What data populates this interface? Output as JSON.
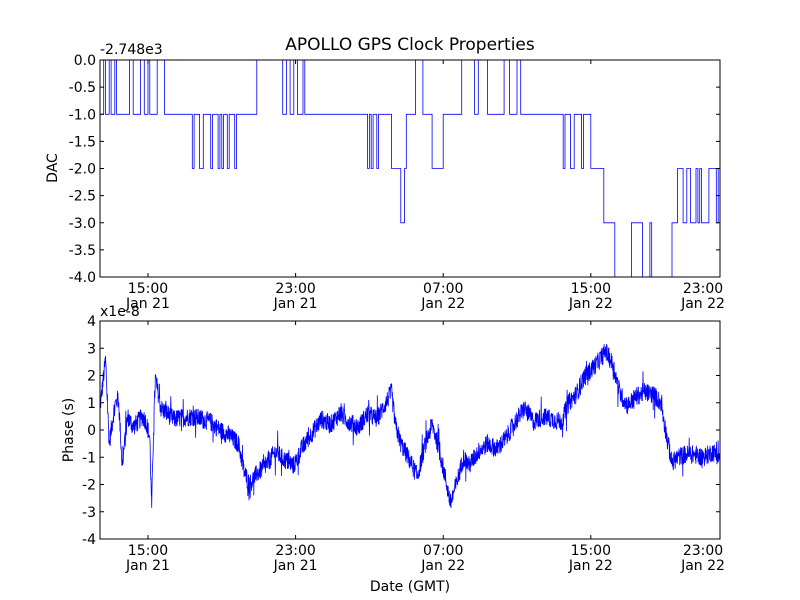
{
  "chart_data": [
    {
      "type": "line",
      "title": "APOLLO GPS Clock Properties",
      "ylabel": "DAC",
      "xlabel": "",
      "offset_label": "-2.748e3",
      "ylim": [
        -4.0,
        0.0
      ],
      "xlim_hours": [
        0,
        33.6
      ],
      "yticks": [
        0.0,
        -0.5,
        -1.0,
        -1.5,
        -2.0,
        -2.5,
        -3.0,
        -3.5,
        -4.0
      ],
      "ytick_labels": [
        "0.0",
        "-0.5",
        "-1.0",
        "-1.5",
        "-2.0",
        "-2.5",
        "-3.0",
        "-3.5",
        "-4.0"
      ],
      "xtick_hours": [
        2.6,
        10.6,
        18.6,
        26.6,
        34.6
      ],
      "xtick_time_labels": [
        "15:00",
        "23:00",
        "07:00",
        "15:00",
        "23:00"
      ],
      "xtick_date_labels": [
        "Jan 21",
        "Jan 21",
        "Jan 22",
        "Jan 22",
        "Jan 22"
      ],
      "line_color": "#0000ff",
      "series": [
        {
          "name": "DAC",
          "points": [
            [
              0.0,
              -1.0
            ],
            [
              0.2,
              -1.0
            ],
            [
              0.2,
              0.0
            ],
            [
              0.3,
              0.0
            ],
            [
              0.3,
              -1.0
            ],
            [
              0.5,
              -1.0
            ],
            [
              0.5,
              0.0
            ],
            [
              0.6,
              0.0
            ],
            [
              0.6,
              -1.0
            ],
            [
              0.8,
              -1.0
            ],
            [
              0.8,
              0.0
            ],
            [
              0.9,
              0.0
            ],
            [
              0.9,
              -1.0
            ],
            [
              1.6,
              -1.0
            ],
            [
              1.6,
              0.0
            ],
            [
              1.8,
              0.0
            ],
            [
              1.8,
              -1.0
            ],
            [
              2.2,
              -1.0
            ],
            [
              2.2,
              0.0
            ],
            [
              2.4,
              0.0
            ],
            [
              2.4,
              -1.0
            ],
            [
              2.6,
              -1.0
            ],
            [
              2.6,
              0.0
            ],
            [
              2.7,
              0.0
            ],
            [
              2.7,
              -1.0
            ],
            [
              3.1,
              -1.0
            ],
            [
              3.1,
              0.0
            ],
            [
              3.5,
              0.0
            ],
            [
              3.5,
              -1.0
            ],
            [
              5.0,
              -1.0
            ],
            [
              5.0,
              -2.0
            ],
            [
              5.1,
              -2.0
            ],
            [
              5.1,
              -1.0
            ],
            [
              5.4,
              -1.0
            ],
            [
              5.4,
              -2.0
            ],
            [
              5.6,
              -2.0
            ],
            [
              5.6,
              -1.0
            ],
            [
              6.0,
              -1.0
            ],
            [
              6.0,
              -2.0
            ],
            [
              6.1,
              -2.0
            ],
            [
              6.1,
              -1.0
            ],
            [
              6.4,
              -1.0
            ],
            [
              6.4,
              -2.0
            ],
            [
              6.5,
              -2.0
            ],
            [
              6.5,
              -1.0
            ],
            [
              6.6,
              -1.0
            ],
            [
              6.6,
              -2.0
            ],
            [
              6.7,
              -2.0
            ],
            [
              6.7,
              -1.0
            ],
            [
              6.9,
              -1.0
            ],
            [
              6.9,
              -2.0
            ],
            [
              7.0,
              -2.0
            ],
            [
              7.0,
              -1.0
            ],
            [
              7.3,
              -1.0
            ],
            [
              7.3,
              -2.0
            ],
            [
              7.4,
              -2.0
            ],
            [
              7.4,
              -1.0
            ],
            [
              8.5,
              -1.0
            ],
            [
              8.5,
              0.0
            ],
            [
              9.9,
              0.0
            ],
            [
              9.9,
              -1.0
            ],
            [
              10.1,
              -1.0
            ],
            [
              10.1,
              0.0
            ],
            [
              10.3,
              0.0
            ],
            [
              10.3,
              -1.0
            ],
            [
              10.5,
              -1.0
            ],
            [
              10.5,
              0.0
            ],
            [
              10.7,
              0.0
            ],
            [
              10.7,
              -1.0
            ],
            [
              11.0,
              -1.0
            ],
            [
              11.0,
              0.0
            ],
            [
              11.1,
              0.0
            ],
            [
              11.1,
              -1.0
            ],
            [
              14.5,
              -1.0
            ],
            [
              14.5,
              -2.0
            ],
            [
              14.6,
              -2.0
            ],
            [
              14.6,
              -1.0
            ],
            [
              14.7,
              -1.0
            ],
            [
              14.7,
              -2.0
            ],
            [
              14.8,
              -2.0
            ],
            [
              14.8,
              -1.0
            ],
            [
              15.0,
              -1.0
            ],
            [
              15.0,
              -2.0
            ],
            [
              15.1,
              -2.0
            ],
            [
              15.1,
              -1.0
            ],
            [
              15.8,
              -1.0
            ],
            [
              15.8,
              -2.0
            ],
            [
              16.3,
              -2.0
            ],
            [
              16.3,
              -3.0
            ],
            [
              16.5,
              -3.0
            ],
            [
              16.5,
              -2.0
            ],
            [
              16.6,
              -2.0
            ],
            [
              16.6,
              -1.0
            ],
            [
              17.1,
              -1.0
            ],
            [
              17.1,
              0.0
            ],
            [
              17.5,
              0.0
            ],
            [
              17.5,
              -1.0
            ],
            [
              18.0,
              -1.0
            ],
            [
              18.0,
              -2.0
            ],
            [
              18.6,
              -2.0
            ],
            [
              18.6,
              -1.0
            ],
            [
              19.6,
              -1.0
            ],
            [
              19.6,
              0.0
            ],
            [
              20.3,
              0.0
            ],
            [
              20.3,
              -1.0
            ],
            [
              20.5,
              -1.0
            ],
            [
              20.5,
              0.0
            ],
            [
              21.0,
              0.0
            ],
            [
              21.0,
              -1.0
            ],
            [
              21.9,
              -1.0
            ],
            [
              21.9,
              0.0
            ],
            [
              22.2,
              0.0
            ],
            [
              22.2,
              -1.0
            ],
            [
              22.6,
              -1.0
            ],
            [
              22.6,
              0.0
            ],
            [
              22.8,
              0.0
            ],
            [
              22.8,
              -1.0
            ],
            [
              25.1,
              -1.0
            ],
            [
              25.1,
              -2.0
            ],
            [
              25.2,
              -2.0
            ],
            [
              25.2,
              -1.0
            ],
            [
              25.5,
              -1.0
            ],
            [
              25.5,
              -2.0
            ],
            [
              25.7,
              -2.0
            ],
            [
              25.7,
              -1.0
            ],
            [
              26.1,
              -1.0
            ],
            [
              26.1,
              -2.0
            ],
            [
              26.2,
              -2.0
            ],
            [
              26.2,
              -1.0
            ],
            [
              26.6,
              -1.0
            ],
            [
              26.6,
              -2.0
            ],
            [
              27.3,
              -2.0
            ],
            [
              27.3,
              -3.0
            ],
            [
              27.9,
              -3.0
            ],
            [
              27.9,
              -4.0
            ],
            [
              28.8,
              -4.0
            ],
            [
              28.8,
              -3.0
            ],
            [
              29.4,
              -3.0
            ],
            [
              29.4,
              -4.0
            ],
            [
              29.8,
              -4.0
            ],
            [
              29.8,
              -3.0
            ],
            [
              29.9,
              -3.0
            ],
            [
              29.9,
              -4.0
            ],
            [
              31.0,
              -4.0
            ],
            [
              31.0,
              -3.0
            ],
            [
              31.3,
              -3.0
            ],
            [
              31.3,
              -2.0
            ],
            [
              31.6,
              -2.0
            ],
            [
              31.6,
              -3.0
            ],
            [
              31.8,
              -3.0
            ],
            [
              31.8,
              -2.0
            ],
            [
              32.0,
              -2.0
            ],
            [
              32.0,
              -3.0
            ],
            [
              32.3,
              -3.0
            ],
            [
              32.3,
              -2.0
            ],
            [
              32.4,
              -2.0
            ],
            [
              32.4,
              -3.0
            ],
            [
              32.5,
              -3.0
            ],
            [
              32.5,
              -2.0
            ],
            [
              32.6,
              -2.0
            ],
            [
              32.6,
              -3.0
            ],
            [
              33.0,
              -3.0
            ],
            [
              33.0,
              -2.0
            ],
            [
              33.4,
              -2.0
            ],
            [
              33.4,
              -3.0
            ],
            [
              33.5,
              -3.0
            ],
            [
              33.5,
              -2.0
            ],
            [
              33.6,
              -2.0
            ]
          ]
        }
      ]
    },
    {
      "type": "line",
      "title": "",
      "ylabel": "Phase (s)",
      "xlabel": "Date (GMT)",
      "offset_label": "x1e-8",
      "ylim": [
        -4,
        4
      ],
      "xlim_hours": [
        0,
        33.6
      ],
      "yticks": [
        4,
        3,
        2,
        1,
        0,
        -1,
        -2,
        -3,
        -4
      ],
      "ytick_labels": [
        "4",
        "3",
        "2",
        "1",
        "0",
        "-1",
        "-2",
        "-3",
        "-4"
      ],
      "xtick_hours": [
        2.6,
        10.6,
        18.6,
        26.6,
        34.6
      ],
      "xtick_time_labels": [
        "15:00",
        "23:00",
        "07:00",
        "15:00",
        "23:00"
      ],
      "xtick_date_labels": [
        "Jan 21",
        "Jan 21",
        "Jan 22",
        "Jan 22",
        "Jan 22"
      ],
      "line_color": "#0000ff",
      "noise_amplitude": 0.35,
      "series": [
        {
          "name": "Phase",
          "trend": [
            [
              0.0,
              0.8
            ],
            [
              0.3,
              2.6
            ],
            [
              0.5,
              -0.5
            ],
            [
              0.8,
              0.9
            ],
            [
              1.0,
              1.2
            ],
            [
              1.2,
              -1.3
            ],
            [
              1.5,
              0.5
            ],
            [
              1.8,
              0.1
            ],
            [
              2.3,
              0.5
            ],
            [
              2.5,
              0.3
            ],
            [
              2.7,
              -0.3
            ],
            [
              2.8,
              -2.9
            ],
            [
              2.9,
              0.0
            ],
            [
              3.0,
              1.9
            ],
            [
              3.3,
              0.8
            ],
            [
              4.0,
              0.4
            ],
            [
              5.0,
              0.5
            ],
            [
              5.5,
              0.4
            ],
            [
              6.0,
              0.3
            ],
            [
              6.5,
              0.0
            ],
            [
              7.0,
              -0.2
            ],
            [
              7.5,
              -0.5
            ],
            [
              7.8,
              -1.5
            ],
            [
              8.1,
              -2.0
            ],
            [
              8.5,
              -1.6
            ],
            [
              9.0,
              -1.3
            ],
            [
              9.5,
              -0.8
            ],
            [
              10.0,
              -1.1
            ],
            [
              10.5,
              -1.3
            ],
            [
              11.0,
              -0.6
            ],
            [
              11.5,
              -0.1
            ],
            [
              12.0,
              0.4
            ],
            [
              12.5,
              0.2
            ],
            [
              13.0,
              0.6
            ],
            [
              13.5,
              0.3
            ],
            [
              14.0,
              0.1
            ],
            [
              14.5,
              0.6
            ],
            [
              15.0,
              0.4
            ],
            [
              15.5,
              1.0
            ],
            [
              15.8,
              1.4
            ],
            [
              16.0,
              0.2
            ],
            [
              16.3,
              -0.5
            ],
            [
              16.7,
              -1.0
            ],
            [
              17.2,
              -1.7
            ],
            [
              17.6,
              -0.6
            ],
            [
              18.0,
              0.2
            ],
            [
              18.3,
              -0.5
            ],
            [
              18.7,
              -1.7
            ],
            [
              19.0,
              -2.7
            ],
            [
              19.3,
              -2.0
            ],
            [
              19.7,
              -1.0
            ],
            [
              20.0,
              -1.3
            ],
            [
              20.5,
              -0.8
            ],
            [
              21.0,
              -0.5
            ],
            [
              21.5,
              -0.7
            ],
            [
              22.0,
              -0.3
            ],
            [
              22.5,
              0.3
            ],
            [
              23.0,
              0.8
            ],
            [
              23.5,
              0.3
            ],
            [
              24.0,
              0.5
            ],
            [
              24.5,
              0.4
            ],
            [
              25.0,
              0.3
            ],
            [
              25.4,
              1.0
            ],
            [
              25.8,
              1.3
            ],
            [
              26.2,
              1.9
            ],
            [
              26.6,
              2.2
            ],
            [
              27.0,
              2.5
            ],
            [
              27.4,
              2.9
            ],
            [
              27.8,
              2.4
            ],
            [
              28.2,
              1.3
            ],
            [
              28.6,
              0.9
            ],
            [
              29.0,
              1.2
            ],
            [
              29.5,
              1.4
            ],
            [
              30.0,
              1.3
            ],
            [
              30.4,
              1.0
            ],
            [
              30.7,
              -0.2
            ],
            [
              31.0,
              -1.2
            ],
            [
              31.3,
              -1.0
            ],
            [
              31.7,
              -0.9
            ],
            [
              32.2,
              -0.9
            ],
            [
              32.7,
              -1.0
            ],
            [
              33.2,
              -0.8
            ],
            [
              33.6,
              -1.0
            ]
          ]
        }
      ]
    }
  ]
}
